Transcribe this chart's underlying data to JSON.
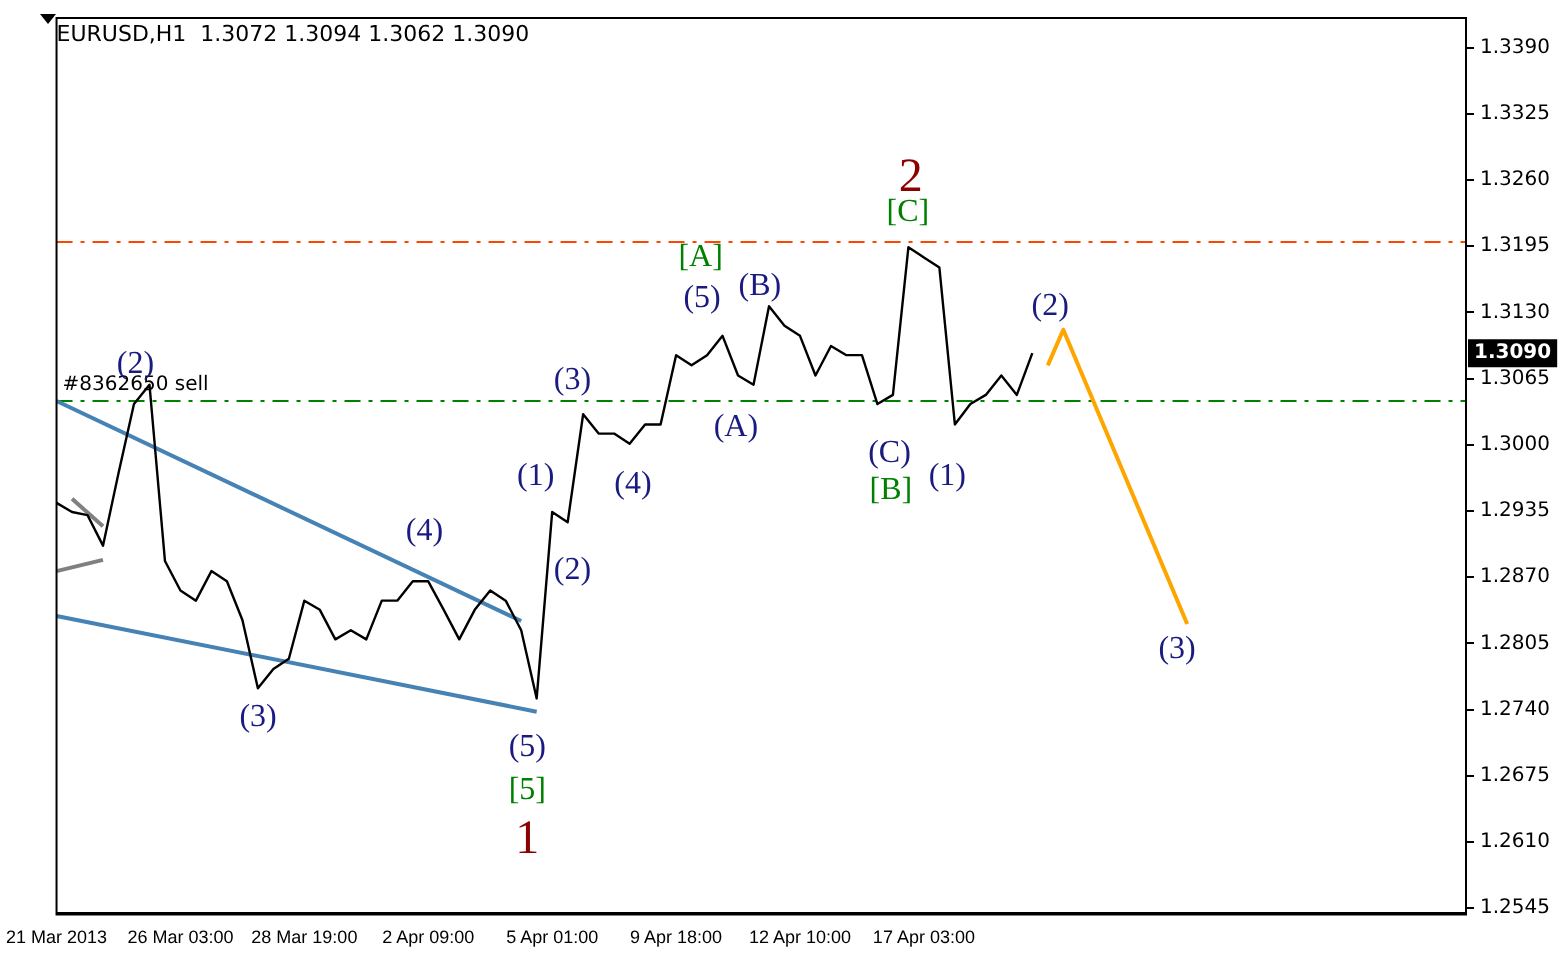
{
  "chart_data": {
    "type": "line",
    "title": "EURUSD,H1  1.3072 1.3094 1.3062 1.3090",
    "categories": [
      "21 Mar 2013",
      null,
      null,
      null,
      null,
      null,
      null,
      null,
      "26 Mar 03:00",
      null,
      null,
      null,
      null,
      null,
      null,
      null,
      "28 Mar 19:00",
      null,
      null,
      null,
      null,
      null,
      null,
      null,
      "2 Apr 09:00",
      null,
      null,
      null,
      null,
      null,
      null,
      null,
      "5 Apr 01:00",
      null,
      null,
      null,
      null,
      null,
      null,
      null,
      "9 Apr 18:00",
      null,
      null,
      null,
      null,
      null,
      null,
      null,
      "12 Apr 10:00",
      null,
      null,
      null,
      null,
      null,
      null,
      null,
      "17 Apr 03:00",
      null,
      null,
      null,
      null,
      null,
      null,
      null,
      null,
      null,
      null,
      null,
      null,
      null,
      null,
      null,
      null,
      null,
      null,
      null,
      null,
      null,
      null,
      null,
      null,
      null,
      null,
      null,
      null,
      null,
      null,
      null,
      null,
      null,
      null,
      null
    ],
    "ylim": [
      1.2539,
      1.3419
    ],
    "yticks": [
      1.2545,
      {
        "value": 1.261,
        "label": "1.2610"
      },
      1.2675,
      {
        "value": 1.274,
        "label": "1.2740"
      },
      1.2805,
      {
        "value": 1.287,
        "label": "1.2870"
      },
      1.2935,
      {
        "value": 1.3,
        "label": "1.3000"
      },
      1.3065,
      {
        "value": 1.313,
        "label": "1.3130"
      },
      1.3195,
      {
        "value": 1.326,
        "label": "1.3260"
      },
      1.3325,
      {
        "value": 1.339,
        "label": "1.3390"
      }
    ],
    "grid": false,
    "legend": false,
    "marker": "none",
    "series": [
      {
        "color": "#000000",
        "values": [
          1.2943,
          1.2934,
          1.2931,
          1.2901,
          1.2972,
          1.304,
          1.3059,
          1.2886,
          1.2857,
          1.2847,
          1.2876,
          1.2866,
          1.2828,
          1.2761,
          1.278,
          1.279,
          1.2847,
          1.2838,
          1.2809,
          1.2818,
          1.2809,
          1.2847,
          1.2847,
          1.2866,
          1.2866,
          1.2838,
          1.2809,
          1.2838,
          1.2857,
          1.2847,
          1.2818,
          1.2751,
          1.2934,
          1.2924,
          1.303,
          1.3011,
          1.3011,
          1.3001,
          1.302,
          1.302,
          1.3088,
          1.3078,
          1.3088,
          1.3107,
          1.3068,
          1.3059,
          1.3136,
          1.3117,
          1.3107,
          1.3068,
          1.3097,
          1.3088,
          1.3088,
          1.304,
          1.3049,
          1.3194,
          1.3184,
          1.3174,
          1.302,
          1.304,
          1.3049,
          1.3068,
          1.3049,
          1.309,
          null,
          null,
          null,
          null,
          null,
          null,
          null,
          null,
          null,
          null,
          null,
          null,
          null,
          null,
          null,
          null,
          null,
          null,
          null,
          null,
          null,
          null,
          null,
          null,
          null,
          null,
          null,
          null
        ]
      },
      {
        "color": "#4682b4",
        "values": [
          1.3043,
          null,
          null,
          null,
          null,
          null,
          null,
          null,
          null,
          null,
          null,
          null,
          null,
          null,
          null,
          null,
          null,
          null,
          null,
          null,
          null,
          null,
          null,
          null,
          null,
          null,
          null,
          null,
          null,
          null,
          1.2827,
          null,
          null,
          null,
          null,
          null,
          null,
          null,
          null,
          null,
          null,
          null,
          null,
          null,
          null,
          null,
          null,
          null,
          null,
          null,
          null,
          null,
          null,
          null,
          null,
          null,
          null,
          null,
          null,
          null,
          null,
          null,
          null,
          null,
          null,
          null,
          null,
          null,
          null,
          null,
          null,
          null,
          null,
          null,
          null,
          null,
          null,
          null,
          null,
          null,
          null,
          null,
          null,
          null,
          null,
          null,
          null,
          null,
          null,
          null,
          null,
          null
        ]
      },
      {
        "color": "#4682b4",
        "values": [
          1.2832,
          null,
          null,
          null,
          null,
          null,
          null,
          null,
          null,
          null,
          null,
          null,
          null,
          null,
          null,
          null,
          null,
          null,
          null,
          null,
          null,
          null,
          null,
          null,
          null,
          null,
          null,
          null,
          null,
          null,
          null,
          1.2738,
          null,
          null,
          null,
          null,
          null,
          null,
          null,
          null,
          null,
          null,
          null,
          null,
          null,
          null,
          null,
          null,
          null,
          null,
          null,
          null,
          null,
          null,
          null,
          null,
          null,
          null,
          null,
          null,
          null,
          null,
          null,
          null,
          null,
          null,
          null,
          null,
          null,
          null,
          null,
          null,
          null,
          null,
          null,
          null,
          null,
          null,
          null,
          null,
          null,
          null,
          null,
          null,
          null,
          null,
          null,
          null,
          null,
          null,
          null,
          null
        ]
      },
      {
        "color": "#808080",
        "values": [
          1.2876,
          null,
          null,
          1.2887,
          null,
          null,
          null,
          null,
          null,
          null,
          null,
          null,
          null,
          null,
          null,
          null,
          null,
          null,
          null,
          null,
          null,
          null,
          null,
          null,
          null,
          null,
          null,
          null,
          null,
          null,
          null,
          null,
          null,
          null,
          null,
          null,
          null,
          null,
          null,
          null,
          null,
          null,
          null,
          null,
          null,
          null,
          null,
          null,
          null,
          null,
          null,
          null,
          null,
          null,
          null,
          null,
          null,
          null,
          null,
          null,
          null,
          null,
          null,
          null,
          null,
          null,
          null,
          null,
          null,
          null,
          null,
          null,
          null,
          null,
          null,
          null,
          null,
          null,
          null,
          null,
          null,
          null,
          null,
          null,
          null,
          null,
          null,
          null,
          null,
          null,
          null,
          null
        ]
      },
      {
        "color": "#808080",
        "values": [
          null,
          1.2947,
          null,
          1.292,
          null,
          null,
          null,
          null,
          null,
          null,
          null,
          null,
          null,
          null,
          null,
          null,
          null,
          null,
          null,
          null,
          null,
          null,
          null,
          null,
          null,
          null,
          null,
          null,
          null,
          null,
          null,
          null,
          null,
          null,
          null,
          null,
          null,
          null,
          null,
          null,
          null,
          null,
          null,
          null,
          null,
          null,
          null,
          null,
          null,
          null,
          null,
          null,
          null,
          null,
          null,
          null,
          null,
          null,
          null,
          null,
          null,
          null,
          null,
          null,
          null,
          null,
          null,
          null,
          null,
          null,
          null,
          null,
          null,
          null,
          null,
          null,
          null,
          null,
          null,
          null,
          null,
          null,
          null,
          null,
          null,
          null,
          null,
          null,
          null,
          null,
          null,
          null
        ]
      },
      {
        "color": "#ffa500",
        "values": [
          null,
          null,
          null,
          null,
          null,
          null,
          null,
          null,
          null,
          null,
          null,
          null,
          null,
          null,
          null,
          null,
          null,
          null,
          null,
          null,
          null,
          null,
          null,
          null,
          null,
          null,
          null,
          null,
          null,
          null,
          null,
          null,
          null,
          null,
          null,
          null,
          null,
          null,
          null,
          null,
          null,
          null,
          null,
          null,
          null,
          null,
          null,
          null,
          null,
          null,
          null,
          null,
          null,
          null,
          null,
          null,
          null,
          null,
          null,
          null,
          null,
          null,
          null,
          null,
          1.3078,
          1.3113,
          null,
          null,
          null,
          null,
          null,
          null,
          null,
          1.2824,
          null,
          null,
          null,
          null,
          null,
          null,
          null,
          null,
          null,
          null,
          null,
          null,
          null,
          null,
          null,
          null,
          null,
          null
        ]
      }
    ],
    "ref_lines": [
      {
        "axis": "y",
        "value": 1.3199,
        "color": "#ff4500",
        "line_style": "dashed"
      },
      {
        "axis": "y",
        "value": 1.3043,
        "color": "#008000",
        "line_style": "dashed",
        "label": "#8362650 sell"
      }
    ],
    "annotations": [
      "(2)",
      "(3)",
      "(4)",
      "(5)",
      "[5]",
      "1",
      "(1)",
      "(2)",
      "(3)",
      "(4)",
      "(5)",
      "[A]",
      "(A)",
      "(B)",
      "(C)",
      "[B]",
      "(1)",
      "[C]",
      "2",
      "(2)",
      "(3)",
      "1.3090"
    ]
  }
}
